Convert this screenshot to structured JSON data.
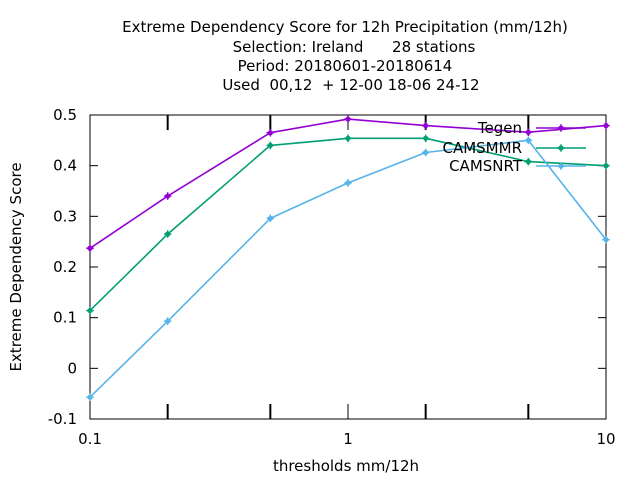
{
  "chart_data": {
    "type": "line",
    "title_lines": [
      "Extreme Dependency Score  for 12h Precipitation (mm/12h)",
      "Selection: Ireland      28 stations",
      "Period: 20180601-20180614",
      "Used  00,12  + 12-00 18-06 24-12"
    ],
    "xlabel": "thresholds mm/12h",
    "ylabel": "Extreme Dependency Score",
    "x_scale": "log",
    "xlim": [
      0.1,
      10
    ],
    "ylim": [
      -0.1,
      0.5
    ],
    "x_ticks": [
      {
        "value": 0.1,
        "label": "0.1"
      },
      {
        "value": 1,
        "label": "1"
      },
      {
        "value": 10,
        "label": "10"
      }
    ],
    "x_minor_ticks": [
      0.2,
      0.5,
      2,
      5
    ],
    "y_ticks": [
      {
        "value": -0.1,
        "label": "-0.1"
      },
      {
        "value": 0,
        "label": "0"
      },
      {
        "value": 0.1,
        "label": "0.1"
      },
      {
        "value": 0.2,
        "label": "0.2"
      },
      {
        "value": 0.3,
        "label": "0.3"
      },
      {
        "value": 0.4,
        "label": "0.4"
      },
      {
        "value": 0.5,
        "label": "0.5"
      }
    ],
    "grid": false,
    "legend_position": "top-right",
    "series": [
      {
        "name": "Tegen",
        "color": "#9400d3",
        "x": [
          0.1,
          0.2,
          0.5,
          1,
          2,
          5,
          10
        ],
        "y": [
          0.237,
          0.34,
          0.465,
          0.492,
          0.479,
          0.466,
          0.479
        ]
      },
      {
        "name": "CAMSMMR",
        "color": "#009e73",
        "x": [
          0.1,
          0.2,
          0.5,
          1,
          2,
          5,
          10
        ],
        "y": [
          0.114,
          0.265,
          0.44,
          0.454,
          0.454,
          0.408,
          0.4
        ]
      },
      {
        "name": "CAMSNRT",
        "color": "#56b4e9",
        "x": [
          0.1,
          0.2,
          0.5,
          1,
          2,
          5,
          10
        ],
        "y": [
          -0.057,
          0.093,
          0.296,
          0.366,
          0.426,
          0.45,
          0.254
        ]
      }
    ]
  }
}
